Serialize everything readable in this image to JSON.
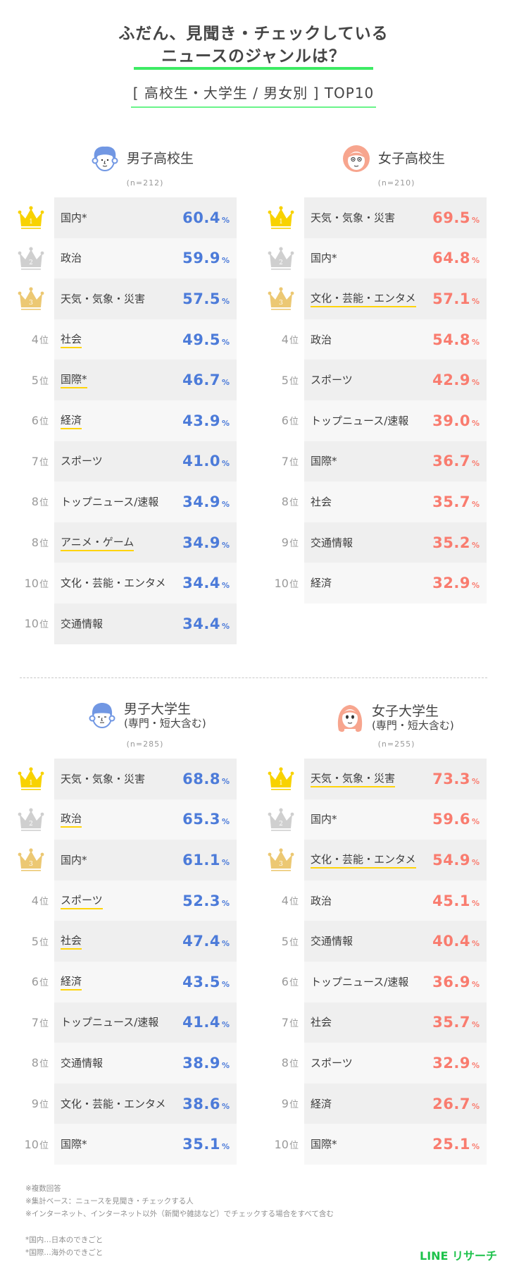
{
  "header": {
    "title_line1": "ふだん、見聞き・チェックしている",
    "title_line2": "ニュースのジャンルは？",
    "subtitle": "[ 高校生・大学生 / 男女別 ] TOP10",
    "accent_green": "#3deb64"
  },
  "colors": {
    "male": "#4c7bd9",
    "female": "#f97c6f",
    "highlight_underline": "#ffd40a",
    "crown_gold": "#f8d200",
    "crown_silver": "#cfcfcf",
    "crown_bronze": "#ecc873"
  },
  "groups": {
    "male_hs": {
      "title": "男子高校生",
      "sub": "",
      "n": "(n=212)",
      "icon": "boy-avatar-icon",
      "rows": [
        {
          "rank": "1",
          "label": "国内*",
          "value": "60.4",
          "highlight": false
        },
        {
          "rank": "2",
          "label": "政治",
          "value": "59.9",
          "highlight": false
        },
        {
          "rank": "3",
          "label": "天気・気象・災害",
          "value": "57.5",
          "highlight": false
        },
        {
          "rank": "4",
          "label": "社会",
          "value": "49.5",
          "highlight": true
        },
        {
          "rank": "5",
          "label": "国際*",
          "value": "46.7",
          "highlight": true
        },
        {
          "rank": "6",
          "label": "経済",
          "value": "43.9",
          "highlight": true
        },
        {
          "rank": "7",
          "label": "スポーツ",
          "value": "41.0",
          "highlight": false
        },
        {
          "rank": "8",
          "label": "トップニュース/速報",
          "value": "34.9",
          "highlight": false
        },
        {
          "rank": "8",
          "label": "アニメ・ゲーム",
          "value": "34.9",
          "highlight": true
        },
        {
          "rank": "10",
          "label": "文化・芸能・エンタメ",
          "value": "34.4",
          "highlight": false
        },
        {
          "rank": "10",
          "label": "交通情報",
          "value": "34.4",
          "highlight": false
        }
      ]
    },
    "female_hs": {
      "title": "女子高校生",
      "sub": "",
      "n": "(n=210)",
      "icon": "girl-avatar-icon",
      "rows": [
        {
          "rank": "1",
          "label": "天気・気象・災害",
          "value": "69.5",
          "highlight": false
        },
        {
          "rank": "2",
          "label": "国内*",
          "value": "64.8",
          "highlight": false
        },
        {
          "rank": "3",
          "label": "文化・芸能・エンタメ",
          "value": "57.1",
          "highlight": true
        },
        {
          "rank": "4",
          "label": "政治",
          "value": "54.8",
          "highlight": false
        },
        {
          "rank": "5",
          "label": "スポーツ",
          "value": "42.9",
          "highlight": false
        },
        {
          "rank": "6",
          "label": "トップニュース/速報",
          "value": "39.0",
          "highlight": false
        },
        {
          "rank": "7",
          "label": "国際*",
          "value": "36.7",
          "highlight": false
        },
        {
          "rank": "8",
          "label": "社会",
          "value": "35.7",
          "highlight": false
        },
        {
          "rank": "9",
          "label": "交通情報",
          "value": "35.2",
          "highlight": false
        },
        {
          "rank": "10",
          "label": "経済",
          "value": "32.9",
          "highlight": false
        }
      ]
    },
    "male_univ": {
      "title": "男子大学生",
      "sub": "(専門・短大含む)",
      "n": "(n=285)",
      "icon": "man-avatar-icon",
      "rows": [
        {
          "rank": "1",
          "label": "天気・気象・災害",
          "value": "68.8",
          "highlight": false
        },
        {
          "rank": "2",
          "label": "政治",
          "value": "65.3",
          "highlight": true
        },
        {
          "rank": "3",
          "label": "国内*",
          "value": "61.1",
          "highlight": false
        },
        {
          "rank": "4",
          "label": "スポーツ",
          "value": "52.3",
          "highlight": true
        },
        {
          "rank": "5",
          "label": "社会",
          "value": "47.4",
          "highlight": true
        },
        {
          "rank": "6",
          "label": "経済",
          "value": "43.5",
          "highlight": true
        },
        {
          "rank": "7",
          "label": "トップニュース/速報",
          "value": "41.4",
          "highlight": false
        },
        {
          "rank": "8",
          "label": "交通情報",
          "value": "38.9",
          "highlight": false
        },
        {
          "rank": "9",
          "label": "文化・芸能・エンタメ",
          "value": "38.6",
          "highlight": false
        },
        {
          "rank": "10",
          "label": "国際*",
          "value": "35.1",
          "highlight": false
        }
      ]
    },
    "female_univ": {
      "title": "女子大学生",
      "sub": "(専門・短大含む)",
      "n": "(n=255)",
      "icon": "woman-avatar-icon",
      "rows": [
        {
          "rank": "1",
          "label": "天気・気象・災害",
          "value": "73.3",
          "highlight": true
        },
        {
          "rank": "2",
          "label": "国内*",
          "value": "59.6",
          "highlight": false
        },
        {
          "rank": "3",
          "label": "文化・芸能・エンタメ",
          "value": "54.9",
          "highlight": true
        },
        {
          "rank": "4",
          "label": "政治",
          "value": "45.1",
          "highlight": false
        },
        {
          "rank": "5",
          "label": "交通情報",
          "value": "40.4",
          "highlight": false
        },
        {
          "rank": "6",
          "label": "トップニュース/速報",
          "value": "36.9",
          "highlight": false
        },
        {
          "rank": "7",
          "label": "社会",
          "value": "35.7",
          "highlight": false
        },
        {
          "rank": "8",
          "label": "スポーツ",
          "value": "32.9",
          "highlight": false
        },
        {
          "rank": "9",
          "label": "経済",
          "value": "26.7",
          "highlight": false
        },
        {
          "rank": "10",
          "label": "国際*",
          "value": "25.1",
          "highlight": false
        }
      ]
    }
  },
  "labels": {
    "rank_suffix": "位",
    "percent": "%"
  },
  "footer": {
    "notes": [
      "※複数回答",
      "※集計ベース：ニュースを見聞き・チェックする人",
      "※インターネット、インターネット以外（新聞や雑誌など）でチェックする場合をすべて含む"
    ],
    "definitions": [
      "*国内…日本のできごと",
      "*国際…海外のできごと"
    ],
    "logo": "LINE リサーチ"
  }
}
